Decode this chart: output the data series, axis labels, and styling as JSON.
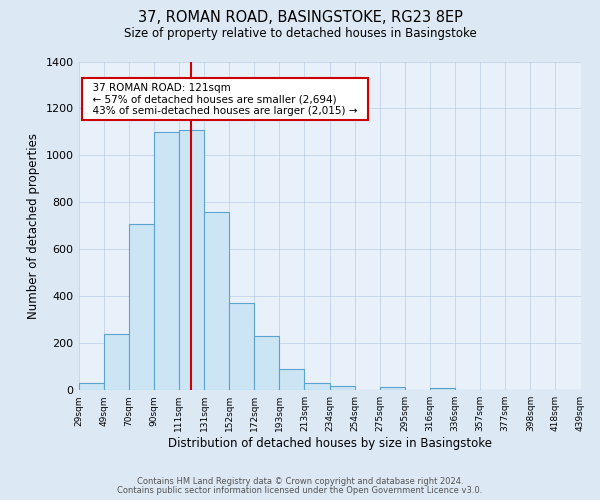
{
  "title": "37, ROMAN ROAD, BASINGSTOKE, RG23 8EP",
  "subtitle": "Size of property relative to detached houses in Basingstoke",
  "xlabel": "Distribution of detached houses by size in Basingstoke",
  "ylabel": "Number of detached properties",
  "bin_labels": [
    "29sqm",
    "49sqm",
    "70sqm",
    "90sqm",
    "111sqm",
    "131sqm",
    "152sqm",
    "172sqm",
    "193sqm",
    "213sqm",
    "234sqm",
    "254sqm",
    "275sqm",
    "295sqm",
    "316sqm",
    "336sqm",
    "357sqm",
    "377sqm",
    "398sqm",
    "418sqm",
    "439sqm"
  ],
  "bar_heights": [
    30,
    240,
    710,
    1100,
    1110,
    760,
    370,
    230,
    90,
    30,
    20,
    0,
    15,
    0,
    10,
    0,
    0,
    0,
    0,
    0
  ],
  "bar_color": "#cce5f5",
  "bar_edge_color": "#5ba3d0",
  "marker_bin": 4,
  "marker_color": "#cc0000",
  "annotation_title": "37 ROMAN ROAD: 121sqm",
  "annotation_line1": "← 57% of detached houses are smaller (2,694)",
  "annotation_line2": "43% of semi-detached houses are larger (2,015) →",
  "annotation_box_color": "#ffffff",
  "annotation_box_edge": "#cc0000",
  "ylim": [
    0,
    1400
  ],
  "yticks": [
    0,
    200,
    400,
    600,
    800,
    1000,
    1200,
    1400
  ],
  "footer_line1": "Contains HM Land Registry data © Crown copyright and database right 2024.",
  "footer_line2": "Contains public sector information licensed under the Open Government Licence v3.0.",
  "background_color": "#dde8f5",
  "plot_bg_color": "#e8f0fa"
}
